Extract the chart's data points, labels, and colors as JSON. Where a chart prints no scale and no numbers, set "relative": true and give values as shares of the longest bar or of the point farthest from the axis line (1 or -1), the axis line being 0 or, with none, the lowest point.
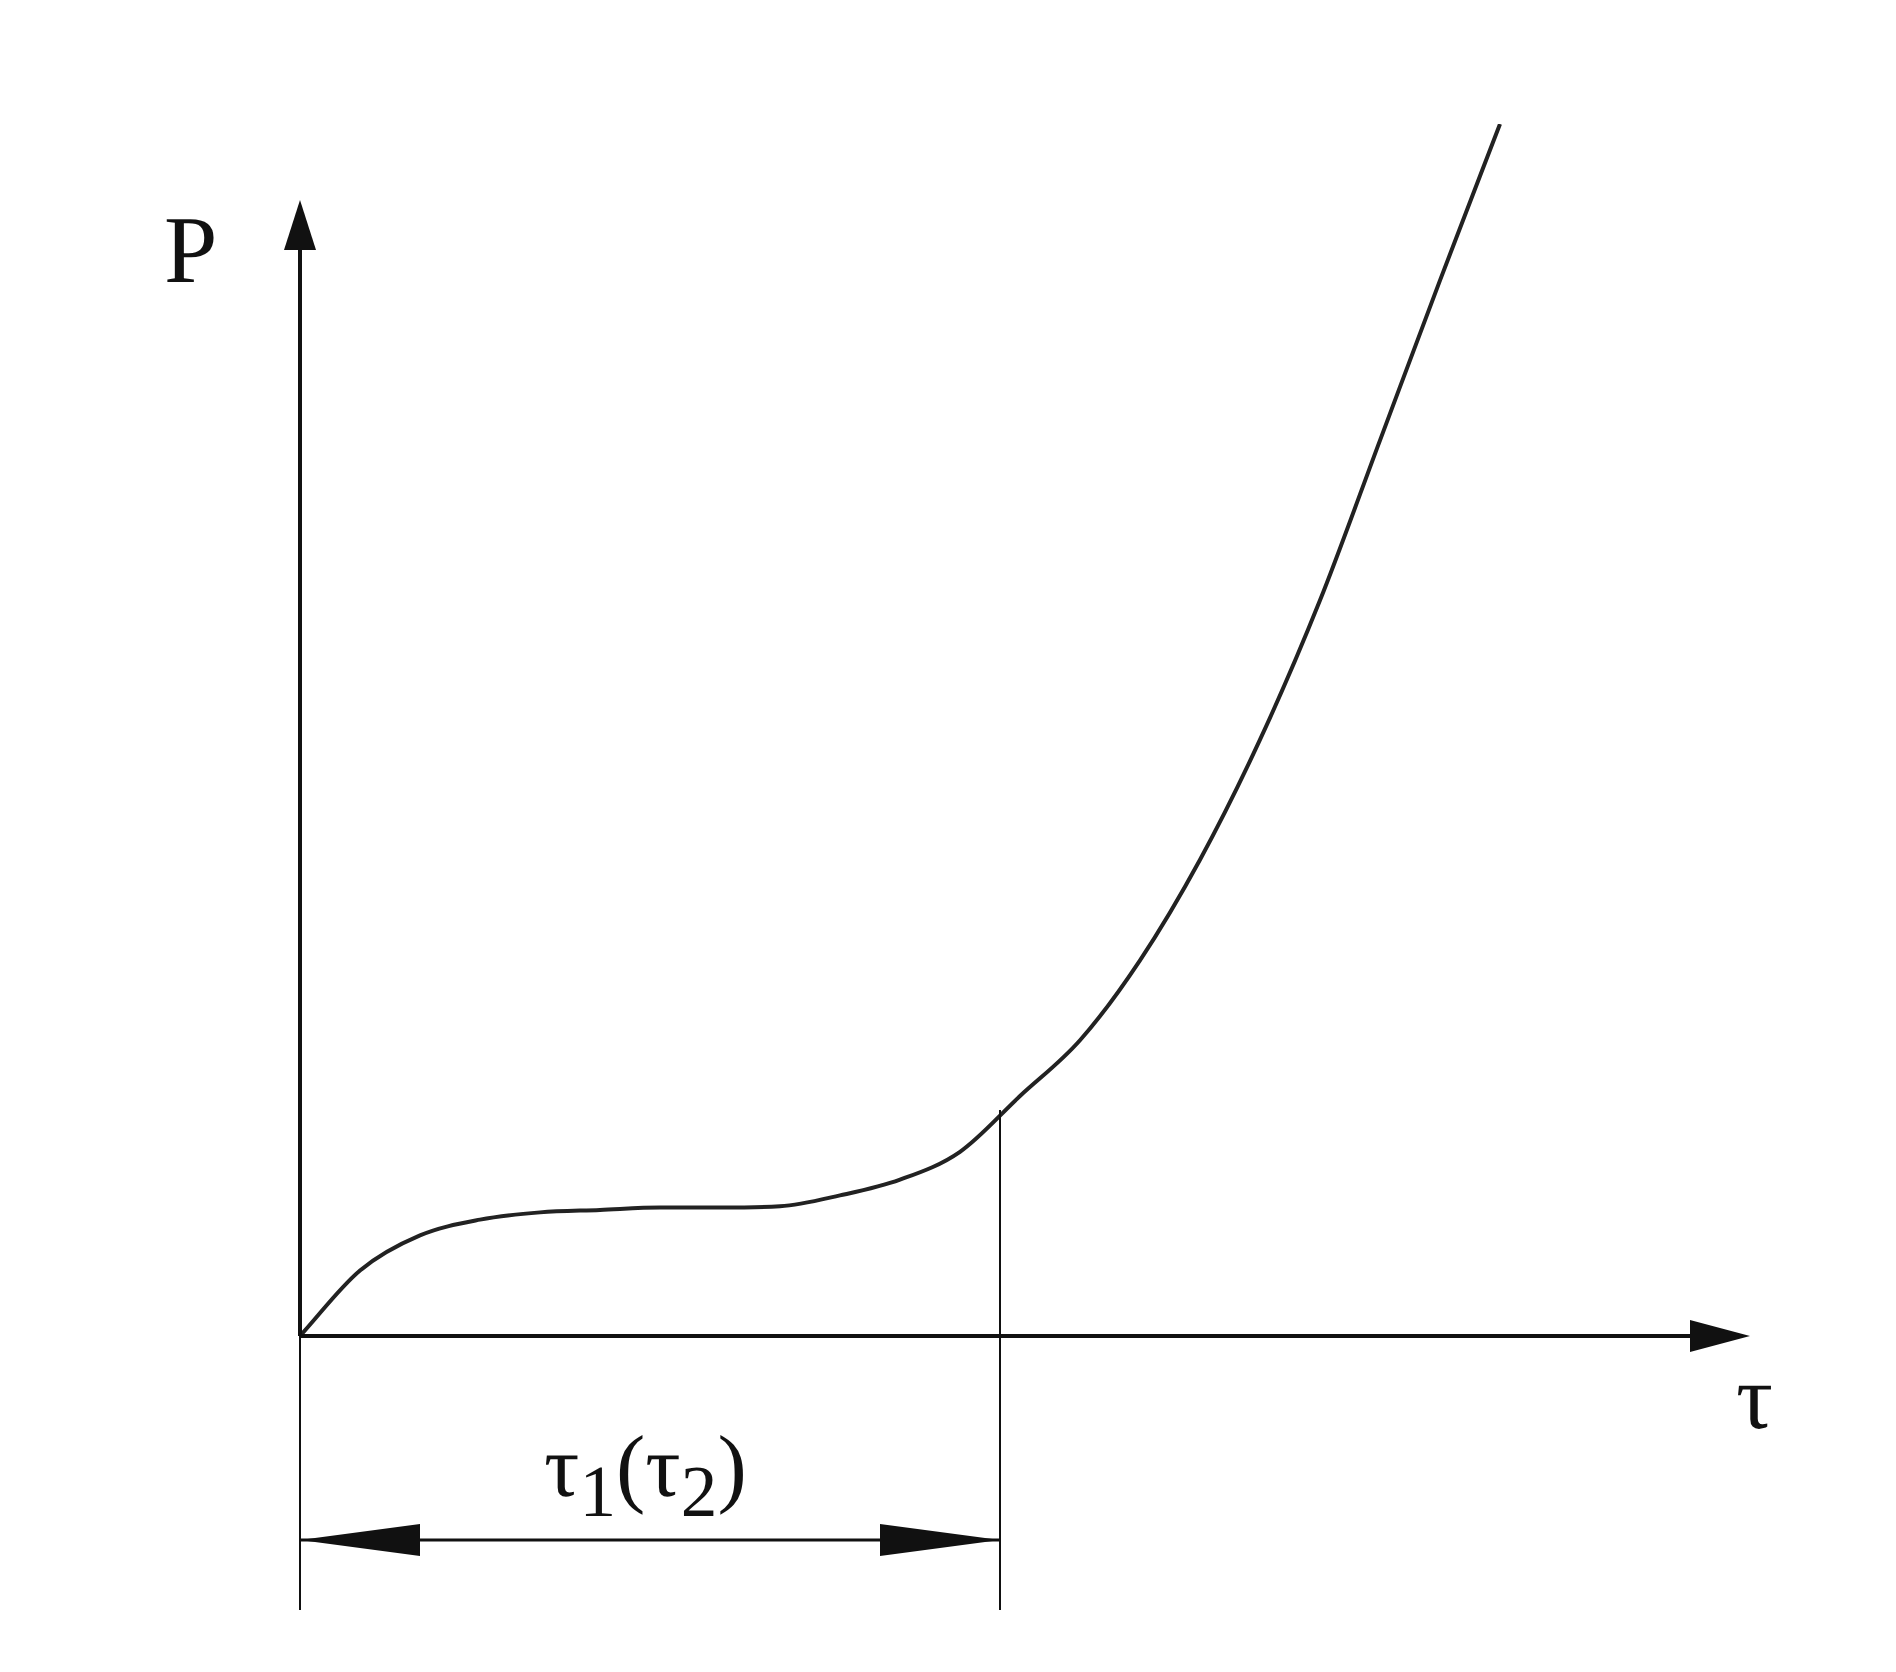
{
  "chart_data": {
    "type": "line",
    "relative": true,
    "xlabel": "τ",
    "ylabel": "P",
    "marker": "none",
    "line_style": "solid",
    "grid": false,
    "legend": false,
    "categories": [
      null,
      null,
      null,
      null,
      null,
      null,
      null,
      null,
      null,
      null,
      null,
      null,
      null,
      null,
      null,
      null,
      null,
      null,
      null,
      null,
      null
    ],
    "series": [
      {
        "color": "#222222",
        "values": [
          0,
          0.054,
          0.083,
          0.096,
          0.102,
          0.104,
          0.106,
          0.106,
          0.107,
          0.116,
          0.129,
          0.152,
          0.198,
          0.244,
          0.31,
          0.393,
          0.492,
          0.607,
          0.739,
          0.871,
          1
        ]
      }
    ],
    "annotations": [
      "τ$_{1}$(τ$_{2}$)"
    ]
  }
}
